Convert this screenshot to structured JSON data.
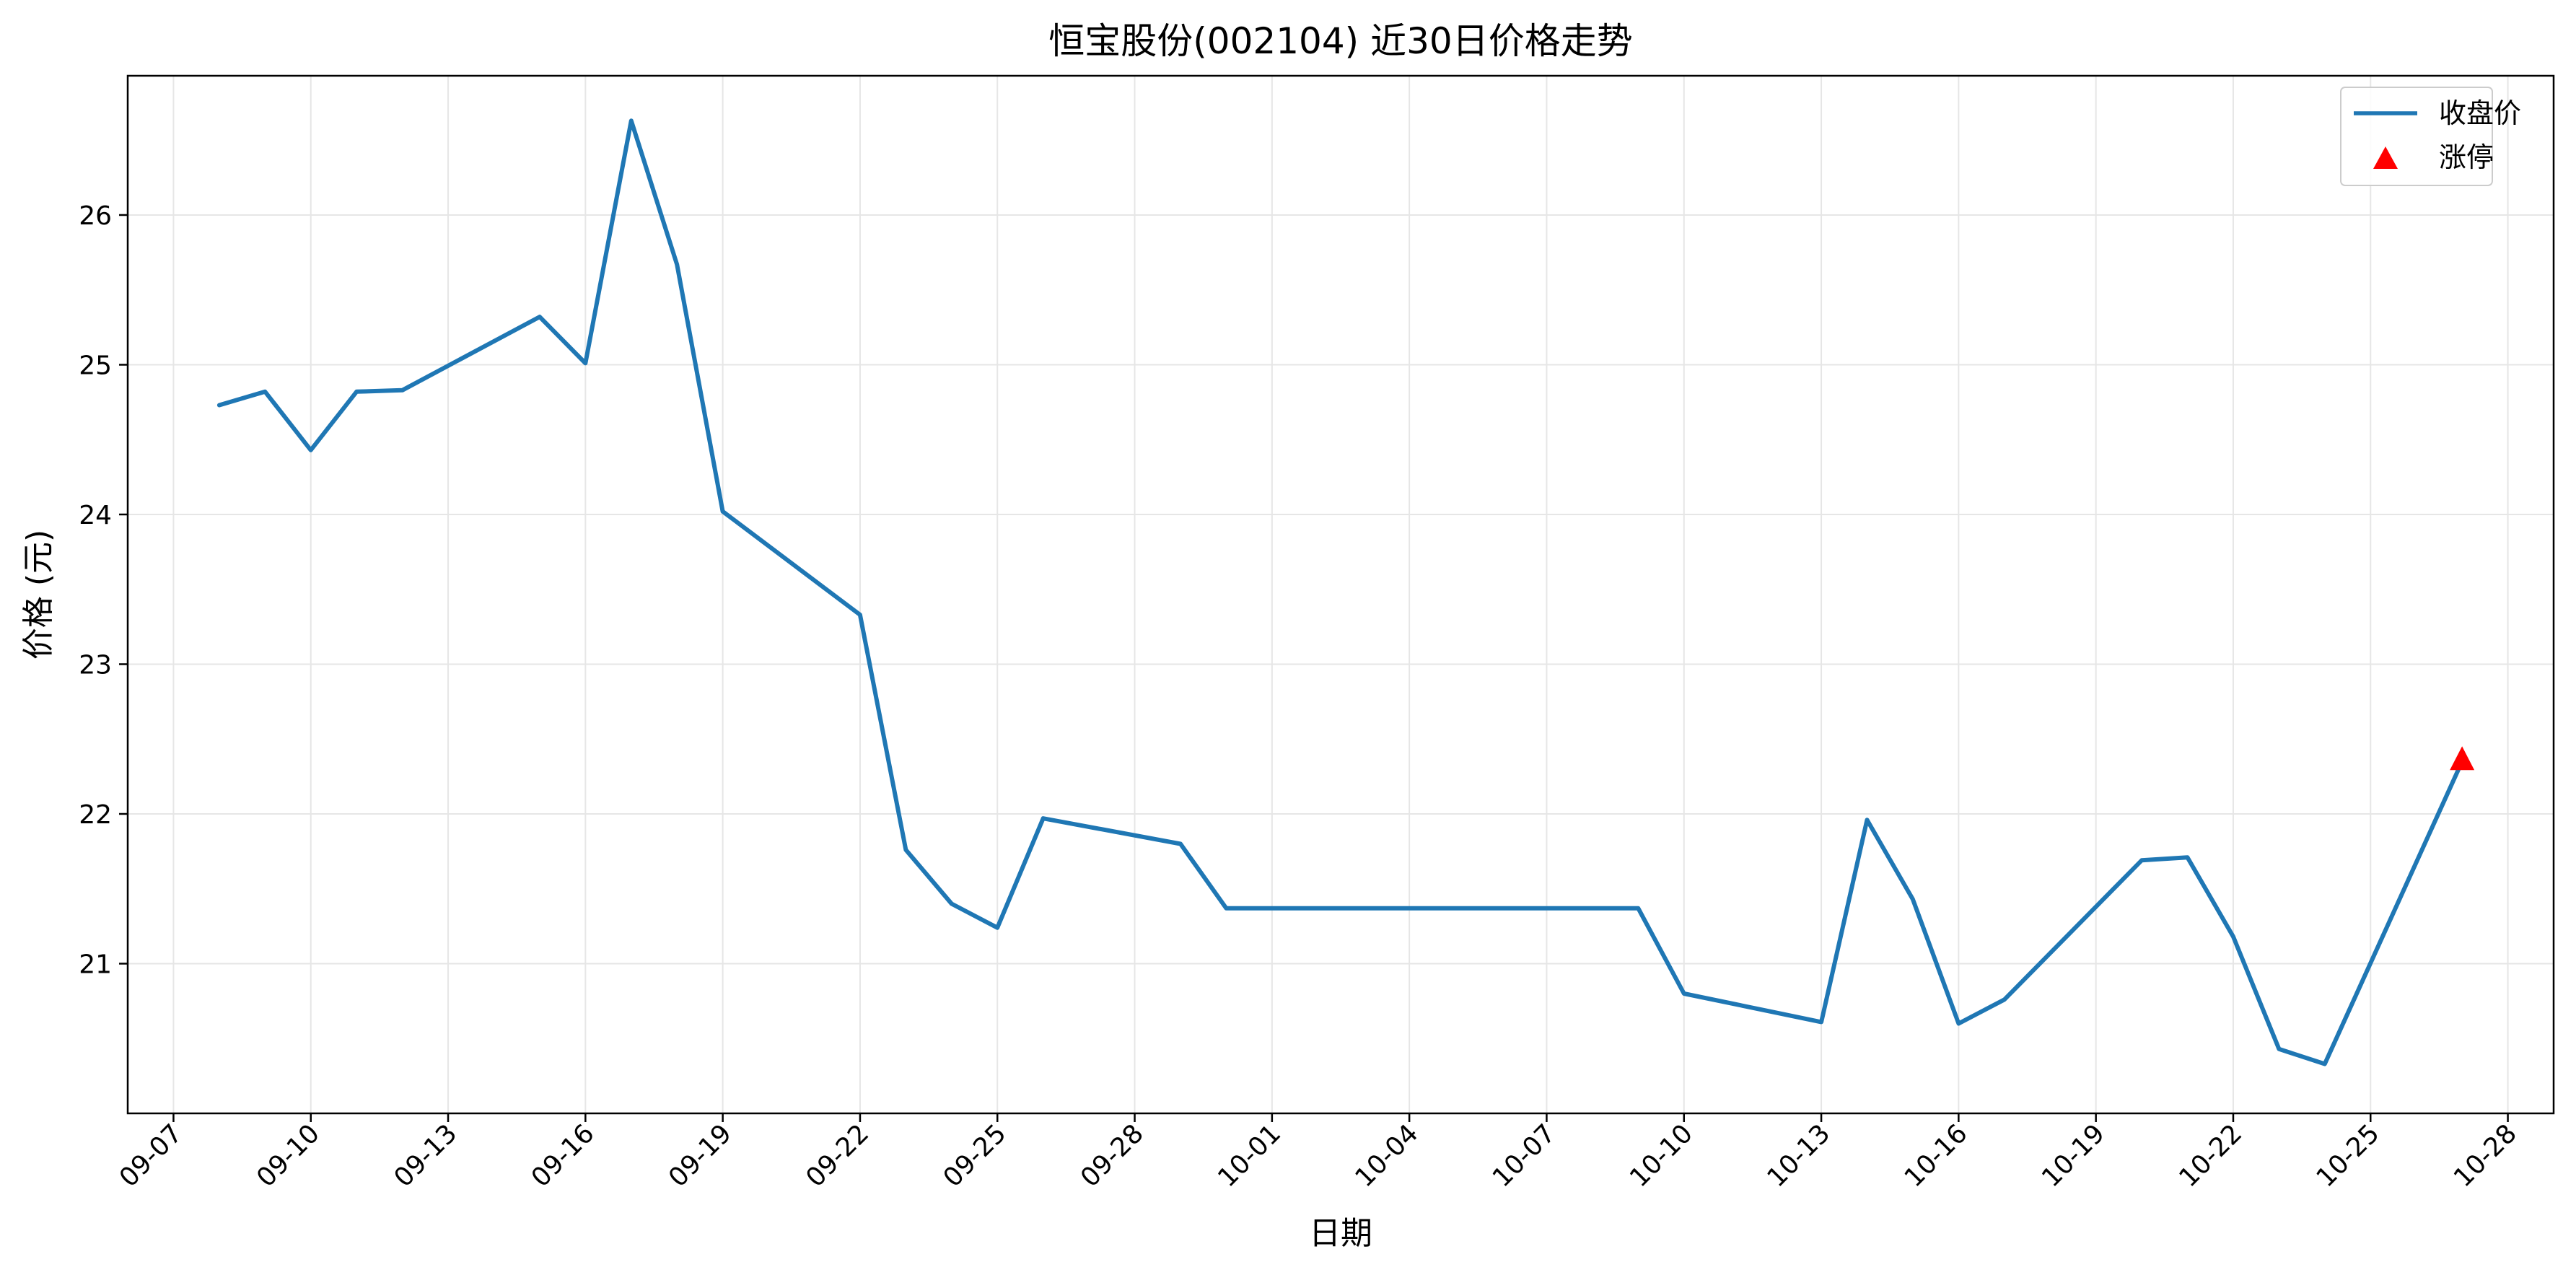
{
  "chart_data": {
    "type": "line",
    "title": "恒宝股份(002104) 近30日价格走势",
    "xlabel": "日期",
    "ylabel": "价格 (元)",
    "x_ticks": [
      "09-07",
      "09-10",
      "09-13",
      "09-16",
      "09-19",
      "09-22",
      "09-25",
      "09-28",
      "10-01",
      "10-04",
      "10-07",
      "10-10",
      "10-13",
      "10-16",
      "10-19",
      "10-22",
      "10-25",
      "10-28"
    ],
    "y_ticks": [
      21,
      22,
      23,
      24,
      25,
      26
    ],
    "xlim": [
      "09-06",
      "10-29"
    ],
    "ylim": [
      20.0,
      26.93
    ],
    "grid": true,
    "legend_position": "top-right",
    "series": [
      {
        "name": "收盘价",
        "color": "#1f77b4",
        "x": [
          "09-08",
          "09-09",
          "09-10",
          "09-11",
          "09-12",
          "09-15",
          "09-16",
          "09-17",
          "09-18",
          "09-19",
          "09-22",
          "09-23",
          "09-24",
          "09-25",
          "09-26",
          "09-29",
          "09-30",
          "10-09",
          "10-10",
          "10-13",
          "10-14",
          "10-15",
          "10-16",
          "10-17",
          "10-20",
          "10-21",
          "10-22",
          "10-23",
          "10-24",
          "10-27"
        ],
        "values": [
          24.73,
          24.82,
          24.43,
          24.82,
          24.83,
          25.32,
          25.01,
          26.63,
          25.67,
          24.02,
          23.33,
          21.76,
          21.4,
          21.24,
          21.97,
          21.8,
          21.37,
          21.37,
          20.8,
          20.61,
          21.96,
          21.43,
          20.6,
          20.76,
          21.69,
          21.71,
          21.18,
          20.43,
          20.33,
          22.35
        ]
      }
    ],
    "markers": [
      {
        "name": "涨停",
        "color": "#ff0000",
        "shape": "triangle",
        "x": [
          "10-27"
        ],
        "values": [
          22.36
        ]
      }
    ]
  }
}
